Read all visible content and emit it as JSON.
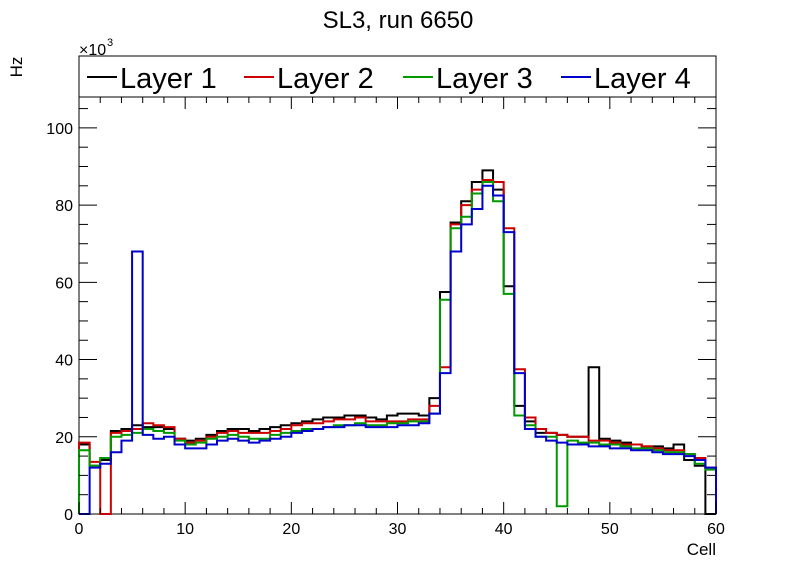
{
  "chart_data": {
    "type": "line",
    "title": "SL3, run 6650",
    "xlabel": "Cell",
    "ylabel": "Hz",
    "y_multiplier": "×10",
    "y_multiplier_exp": "3",
    "xlim": [
      0,
      60
    ],
    "ylim": [
      0,
      108
    ],
    "x_ticks": [
      0,
      10,
      20,
      30,
      40,
      50,
      60
    ],
    "y_ticks": [
      0,
      20,
      40,
      60,
      80,
      100
    ],
    "x_tick_labels": [
      "0",
      "10",
      "20",
      "30",
      "40",
      "50",
      "60"
    ],
    "y_tick_labels": [
      "0",
      "20",
      "40",
      "60",
      "80",
      "100"
    ],
    "bin_edges_start": 0,
    "bin_width": 1,
    "legend_position": "top",
    "series": [
      {
        "name": "Layer 1",
        "color": "#000000",
        "values": [
          18,
          12.5,
          14,
          21.5,
          22,
          23,
          22.5,
          22.5,
          22,
          19.5,
          19,
          19.5,
          20.5,
          21.5,
          22,
          22,
          21.5,
          22,
          22.5,
          23,
          23.5,
          24,
          24.5,
          25,
          25,
          25.5,
          25.5,
          25,
          24.5,
          25.5,
          26,
          26,
          25.5,
          30,
          57.5,
          75.5,
          81,
          86,
          89,
          84,
          59,
          28,
          24,
          21,
          21,
          20.5,
          20,
          20,
          38,
          19.5,
          19,
          18.5,
          18,
          17.5,
          17.5,
          17,
          18,
          14,
          12.5,
          0
        ]
      },
      {
        "name": "Layer 2",
        "color": "#cc0000",
        "values": [
          18.5,
          13.5,
          0,
          21,
          21.5,
          22,
          23.5,
          23,
          22.5,
          19.5,
          18.5,
          19,
          20,
          21,
          21.5,
          21,
          21,
          21,
          21.5,
          22,
          23,
          23.5,
          23.5,
          24,
          24.5,
          24.5,
          25,
          24,
          24,
          24,
          24,
          24.5,
          24.5,
          28,
          38,
          75,
          80,
          84,
          86.5,
          86,
          74,
          37.5,
          25,
          22,
          21,
          20.5,
          20,
          20,
          19,
          19,
          18.5,
          18,
          18,
          17.5,
          17,
          16.5,
          16.5,
          15.5,
          14.5,
          12
        ]
      },
      {
        "name": "Layer 3",
        "color": "#009900",
        "values": [
          16.5,
          12.5,
          14.5,
          20,
          20.5,
          21,
          22,
          21.5,
          21,
          19,
          18,
          18.5,
          19.5,
          20,
          20.5,
          20,
          19.5,
          19.5,
          20.5,
          21,
          21.5,
          22,
          22,
          22.5,
          23,
          23,
          23.5,
          23,
          23,
          23.5,
          23.5,
          24,
          24,
          26,
          55.5,
          74,
          77,
          83,
          86,
          81,
          57,
          25.5,
          23,
          20,
          20,
          2,
          19,
          18.5,
          18.5,
          18,
          18,
          17.5,
          17,
          17,
          16.5,
          16,
          16,
          15.5,
          13,
          11.5
        ]
      },
      {
        "name": "Layer 4",
        "color": "#0000cc",
        "values": [
          0,
          12,
          13,
          16,
          19,
          68,
          20.5,
          19.5,
          20,
          18,
          17,
          17,
          18,
          19,
          19.5,
          19,
          18.5,
          19,
          19.5,
          20,
          21,
          21.5,
          22,
          22.5,
          22.5,
          23,
          23,
          22.5,
          22.5,
          22.5,
          23,
          23,
          23.5,
          26,
          36.5,
          68,
          75,
          79,
          85,
          82.5,
          73,
          36.5,
          22,
          20,
          19,
          18.5,
          18,
          18,
          17.5,
          17.5,
          17,
          17,
          16.5,
          16.5,
          16,
          15.5,
          15.5,
          15,
          14,
          12
        ]
      }
    ]
  }
}
